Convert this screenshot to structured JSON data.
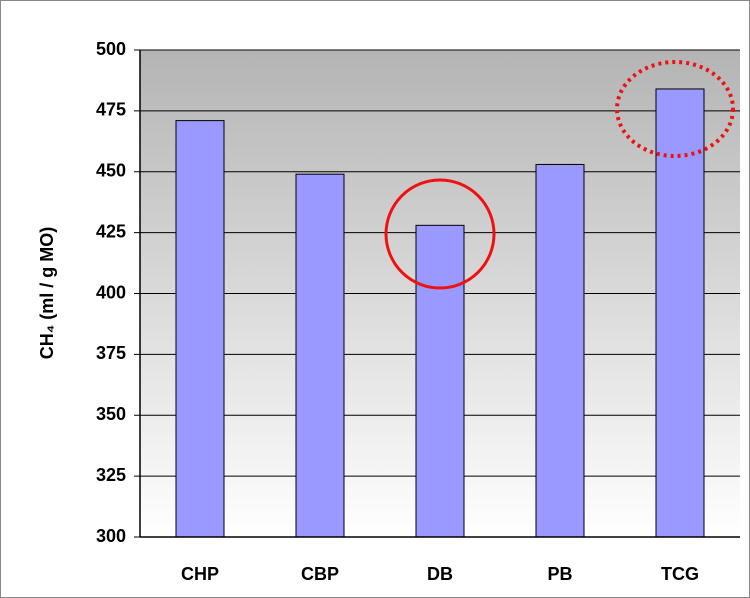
{
  "chart_data": {
    "type": "bar",
    "y_label": "CH₄ (ml / g MO)",
    "categories": [
      "CHP",
      "CBP",
      "DB",
      "PB",
      "TCG"
    ],
    "values": [
      471,
      449,
      428,
      453,
      484
    ],
    "color": "#9999ff",
    "ylim": [
      300,
      500
    ],
    "yticks": [
      300,
      325,
      350,
      375,
      400,
      425,
      450,
      475,
      500
    ],
    "grid": true
  }
}
